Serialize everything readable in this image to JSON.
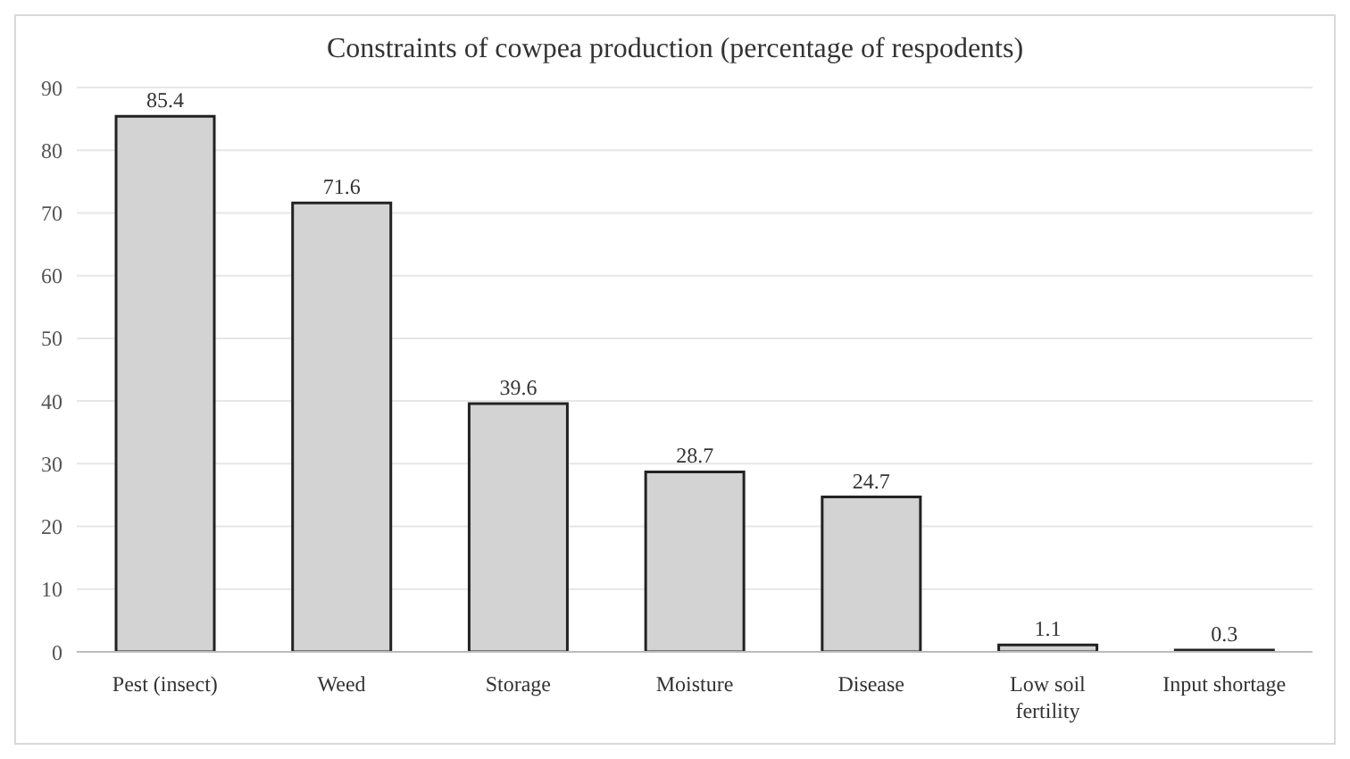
{
  "chart_data": {
    "type": "bar",
    "title": "Constraints of cowpea production (percentage of respodents)",
    "categories": [
      "Pest (insect)",
      "Weed",
      "Storage",
      "Moisture",
      "Disease",
      "Low soil fertility",
      "Input shortage"
    ],
    "values": [
      85.4,
      71.6,
      39.6,
      28.7,
      24.7,
      1.1,
      0.3
    ],
    "color": "#d3d3d3",
    "ylim": [
      0,
      90
    ],
    "yticks": [
      0,
      10,
      20,
      30,
      40,
      50,
      60,
      70,
      80,
      90
    ],
    "grid": "y",
    "data_labels": true
  }
}
